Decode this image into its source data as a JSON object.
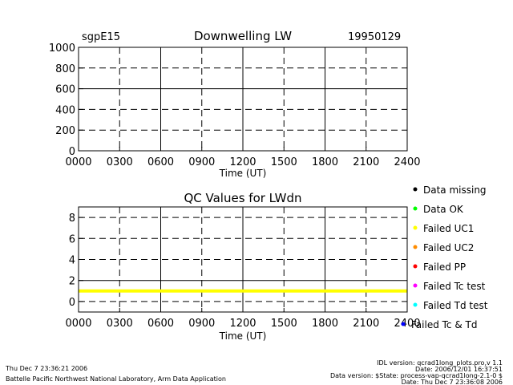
{
  "header": {
    "site": "sgpE15",
    "date": "19950129"
  },
  "chart_data": [
    {
      "type": "line",
      "title": "Downwelling LW",
      "xlabel": "Time (UT)",
      "ylabel": "",
      "x_ticks": [
        "0000",
        "0300",
        "0600",
        "0900",
        "1200",
        "1500",
        "1800",
        "2100",
        "2400"
      ],
      "xlim": [
        0,
        24
      ],
      "ylim": [
        0,
        1000
      ],
      "y_ticks": [
        0,
        200,
        400,
        600,
        800,
        1000
      ],
      "grid_solid_x": [
        6,
        12,
        18
      ],
      "grid_dashed_x": [
        3,
        9,
        15,
        21
      ],
      "grid_solid_y": [
        600
      ],
      "grid_dashed_y": [
        200,
        400,
        800
      ],
      "series": []
    },
    {
      "type": "line",
      "title": "QC Values for LWdn",
      "xlabel": "Time (UT)",
      "ylabel": "",
      "x_ticks": [
        "0000",
        "0300",
        "0600",
        "0900",
        "1200",
        "1500",
        "1800",
        "2100",
        "2400"
      ],
      "xlim": [
        0,
        24
      ],
      "ylim": [
        -1,
        9
      ],
      "y_ticks": [
        0,
        2,
        4,
        6,
        8
      ],
      "grid_solid_x": [
        6,
        12,
        18
      ],
      "grid_dashed_x": [
        3,
        9,
        15,
        21
      ],
      "grid_solid_y": [
        2
      ],
      "grid_dashed_y": [
        0,
        4,
        6,
        8
      ],
      "series": [
        {
          "color": "#ffff00",
          "x": [
            0,
            24
          ],
          "y": [
            1,
            1
          ]
        }
      ]
    }
  ],
  "legend": {
    "placement": "right",
    "items": [
      {
        "label": "Data missing",
        "color": "#000000"
      },
      {
        "label": "Data OK",
        "color": "#00ff00"
      },
      {
        "label": "Failed UC1",
        "color": "#ffff00"
      },
      {
        "label": "Failed UC2",
        "color": "#ff8c00"
      },
      {
        "label": "Failed PP",
        "color": "#ff0000"
      },
      {
        "label": "Failed Tc test",
        "color": "#ff00ff"
      },
      {
        "label": "Failed Td test",
        "color": "#00ffff"
      },
      {
        "label": "Failed Tc & Td",
        "color": "#0000ff"
      }
    ]
  },
  "footer": {
    "timestamp": "Thu Dec  7 23:36:21 2006",
    "lab": "Battelle Pacific Northwest National Laboratory, Arm Data Application",
    "idl_version": "IDL version: qcrad1long_plots.pro,v 1.1",
    "date_line": "Date: 2006/12/01 16:37:51",
    "data_version": "Data version: $State: process-vap-qcrad1long-2.1-0 $",
    "date_line2": "Date: Thu Dec  7 23:36:08 2006"
  }
}
